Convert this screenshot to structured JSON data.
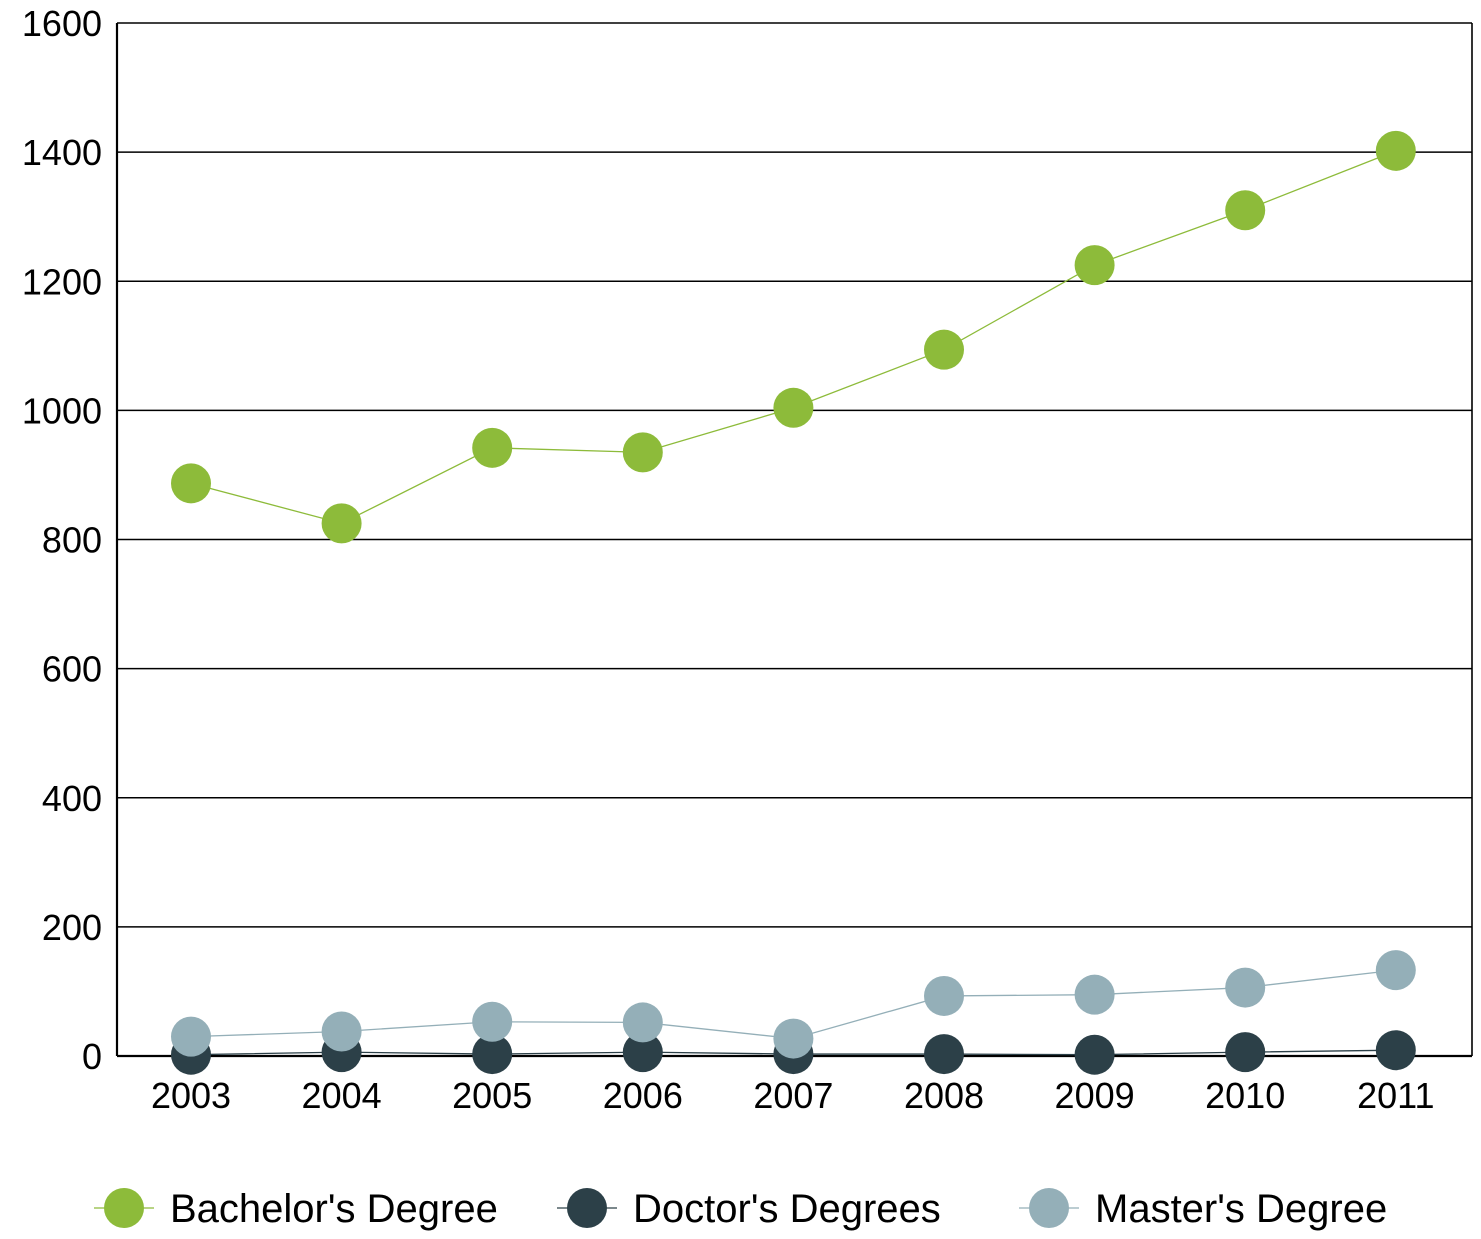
{
  "chart_data": {
    "type": "line",
    "title": "",
    "xlabel": "",
    "ylabel": "",
    "categories": [
      "2003",
      "2004",
      "2005",
      "2006",
      "2007",
      "2008",
      "2009",
      "2010",
      "2011"
    ],
    "ylim": [
      0,
      1600
    ],
    "yticks": [
      "0",
      "200",
      "400",
      "600",
      "800",
      "1000",
      "1200",
      "1400",
      "1600"
    ],
    "grid": true,
    "legend_position": "bottom",
    "series": [
      {
        "name": "Bachelor's Degree",
        "color": "#8dbb3a",
        "values": [
          887,
          825,
          942,
          935,
          1004,
          1094,
          1225,
          1310,
          1402
        ]
      },
      {
        "name": "Doctor's Degrees",
        "color": "#2c4048",
        "values": [
          2,
          6,
          3,
          6,
          3,
          3,
          2,
          6,
          9
        ]
      },
      {
        "name": "Master's Degree",
        "color": "#94afb8",
        "values": [
          30,
          38,
          53,
          52,
          27,
          93,
          95,
          106,
          133
        ]
      }
    ]
  }
}
